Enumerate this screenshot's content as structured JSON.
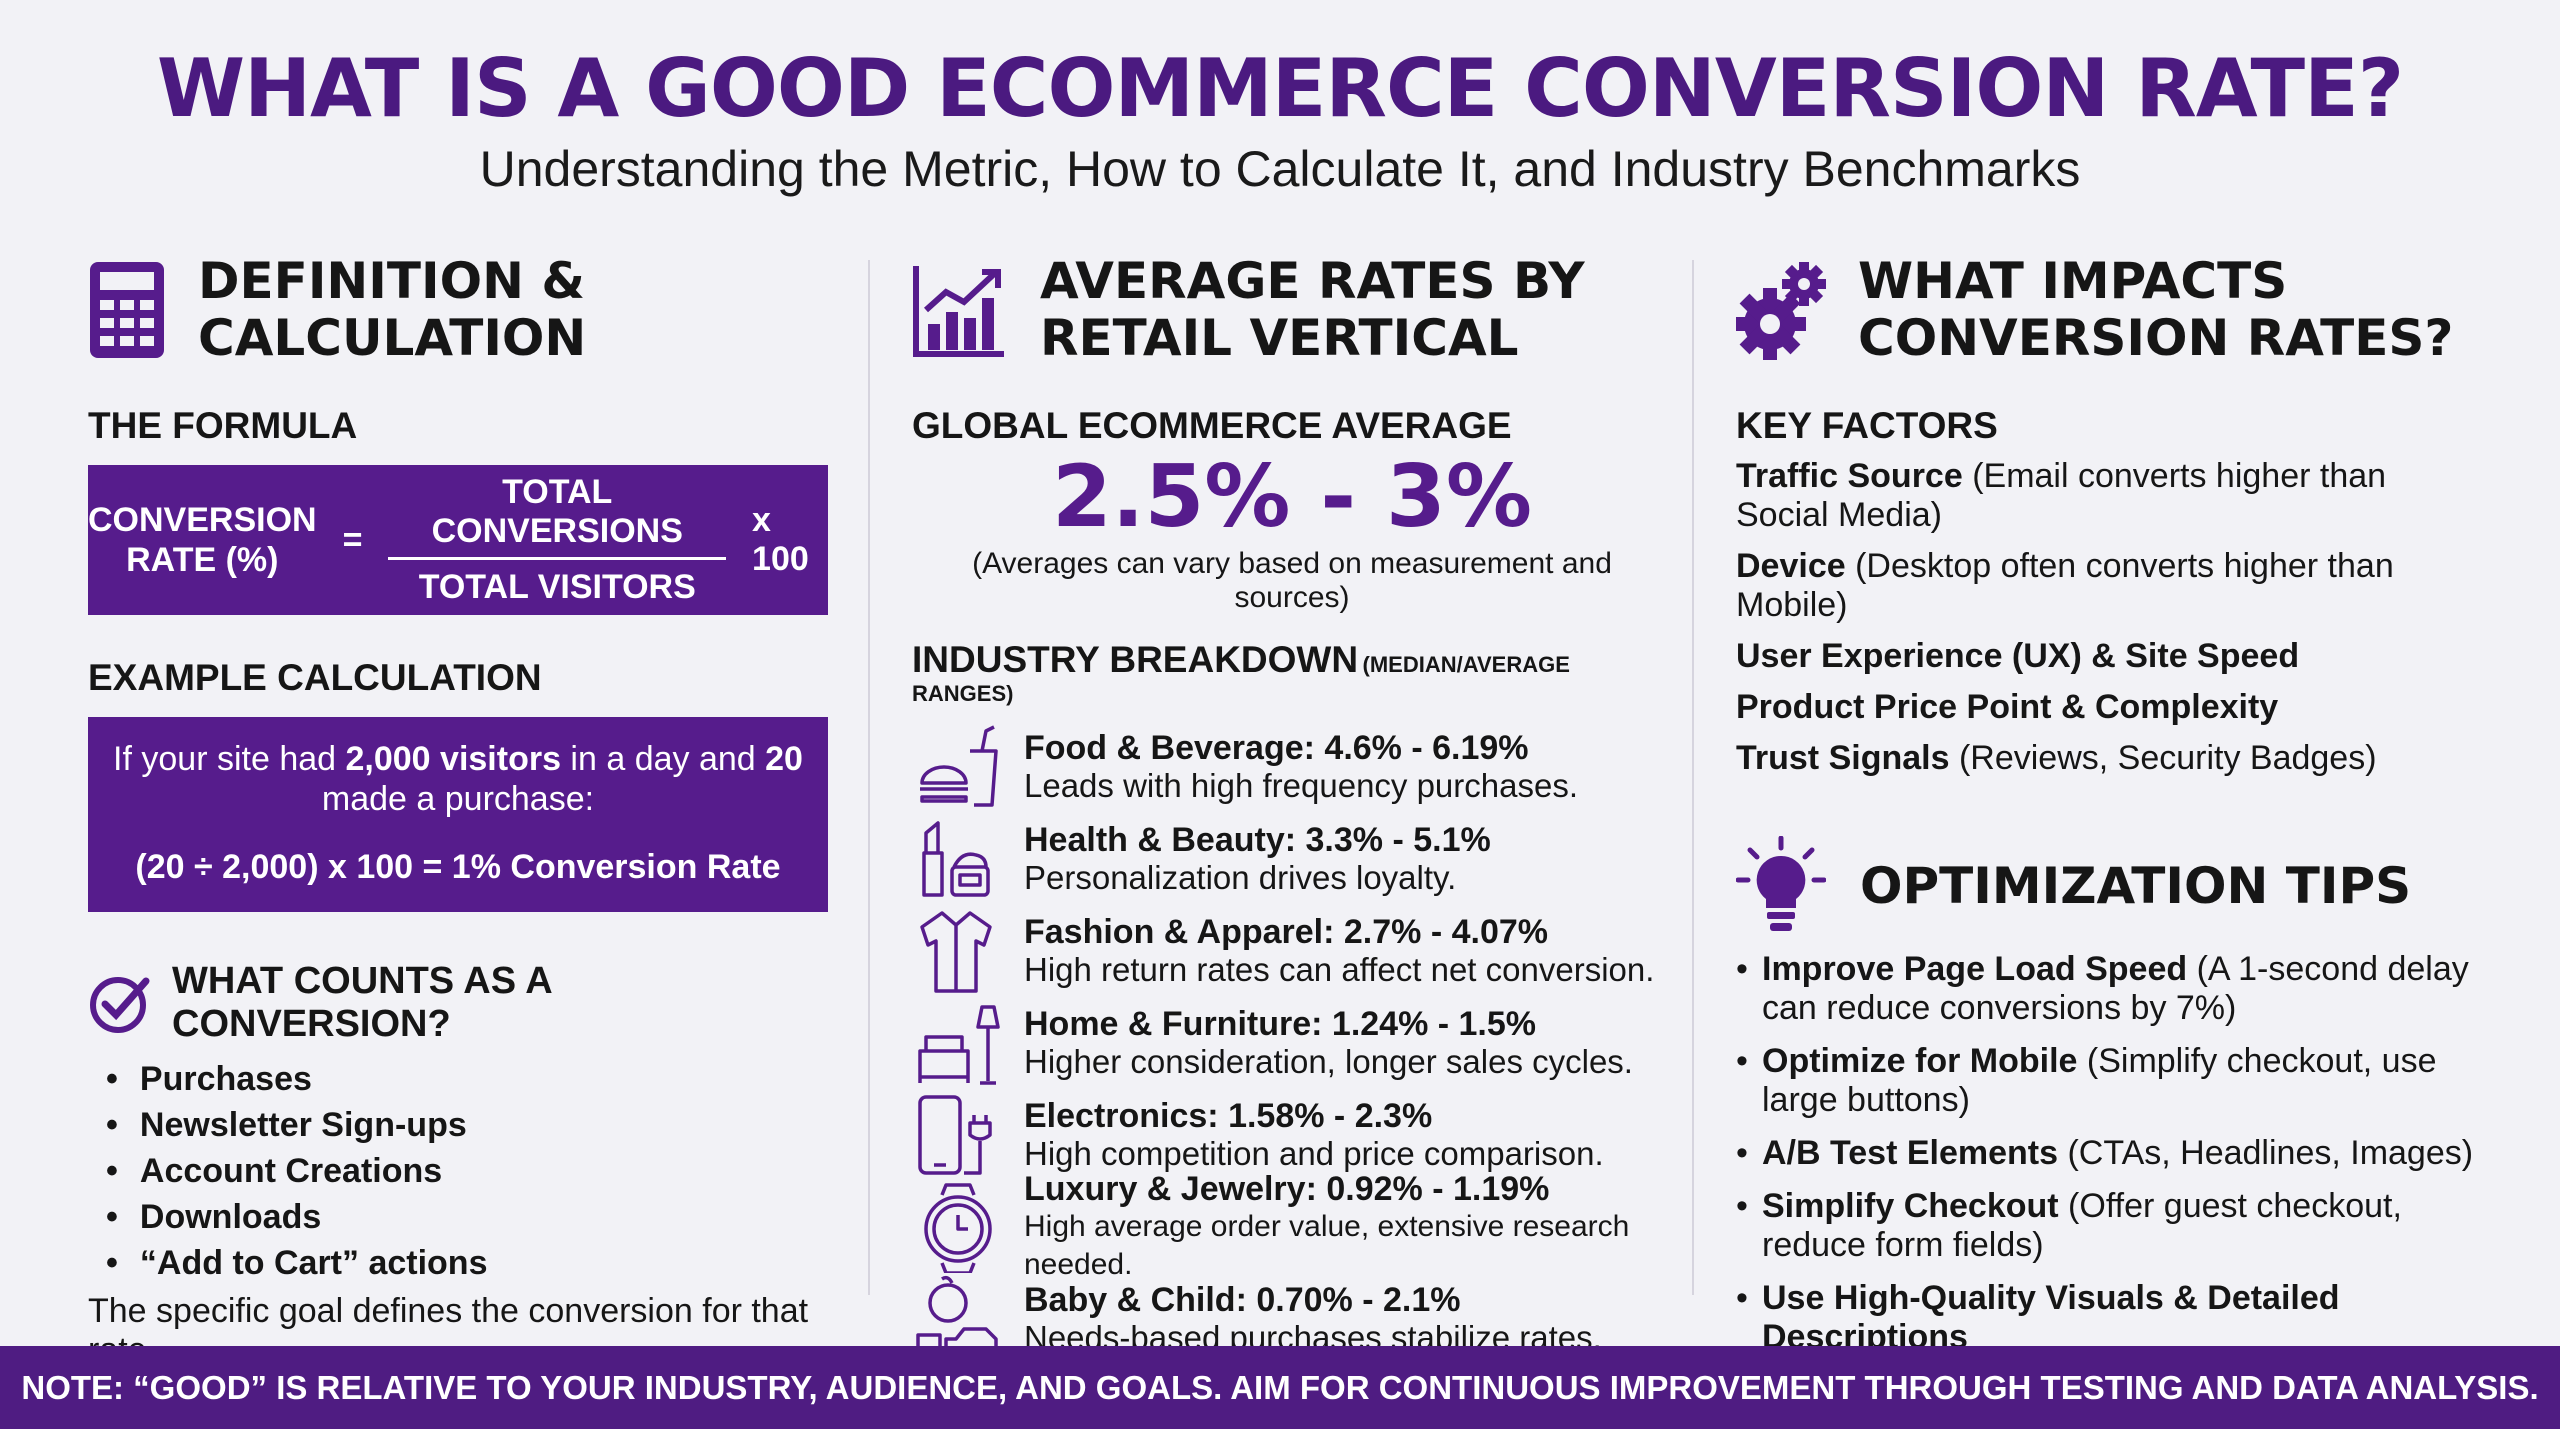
{
  "title": "WHAT IS A GOOD ECOMMERCE CONVERSION RATE?",
  "subtitle": "Understanding the Metric, How to Calculate It, and Industry Benchmarks",
  "colors": {
    "accent": "#561c8c",
    "title": "#4b1a80",
    "background": "#f2f2f6",
    "footer": "#4f1c82"
  },
  "definition": {
    "icon": "calculator-icon",
    "heading_line1": "DEFINITION &",
    "heading_line2": "CALCULATION",
    "formula_heading": "THE FORMULA",
    "formula": {
      "lhs_line1": "CONVERSION",
      "lhs_line2": "RATE (%)",
      "equals": "=",
      "numerator": "TOTAL CONVERSIONS",
      "denominator": "TOTAL VISITORS",
      "multiplier": "x 100"
    },
    "example_heading": "EXAMPLE CALCULATION",
    "example": {
      "t1": "If your site had ",
      "b1": "2,000 visitors",
      "t2": " in a day and ",
      "b2": "20",
      "t3": " made a purchase:",
      "result": "(20 ÷ 2,000) x 100 = 1% Conversion Rate"
    },
    "counts_icon": "check-circle-icon",
    "counts_heading": "WHAT COUNTS AS A CONVERSION?",
    "counts": [
      "Purchases",
      "Newsletter Sign-ups",
      "Account Creations",
      "Downloads",
      "“Add to Cart” actions"
    ],
    "counts_note": "The specific goal defines the conversion for that rate."
  },
  "averages": {
    "icon": "bar-chart-growth-icon",
    "heading_line1": "AVERAGE RATES BY",
    "heading_line2": "RETAIL VERTICAL",
    "global_heading": "GLOBAL ECOMMERCE AVERAGE",
    "global_value": "2.5% - 3%",
    "global_note": "(Averages can vary based on measurement and sources)",
    "breakdown_heading": "INDUSTRY BREAKDOWN",
    "breakdown_note": "(MEDIAN/AVERAGE RANGES)",
    "industries": [
      {
        "icon": "burger-drink-icon",
        "name": "Food & Beverage:",
        "range": "4.6% - 6.19%",
        "desc": "Leads with high frequency purchases."
      },
      {
        "icon": "lipstick-cream-icon",
        "name": "Health & Beauty:",
        "range": "3.3% - 5.1%",
        "desc": "Personalization drives loyalty."
      },
      {
        "icon": "shirt-icon",
        "name": "Fashion & Apparel:",
        "range": "2.7% - 4.07%",
        "desc": "High return rates can affect net conversion."
      },
      {
        "icon": "sofa-lamp-icon",
        "name": "Home & Furniture:",
        "range": "1.24% - 1.5%",
        "desc": "Higher consideration, longer sales cycles."
      },
      {
        "icon": "phone-plug-icon",
        "name": "Electronics:",
        "range": "1.58% - 2.3%",
        "desc": "High competition and price comparison."
      },
      {
        "icon": "watch-icon",
        "name": "Luxury & Jewelry:",
        "range": "0.92% - 1.19%",
        "desc": "High average order value, extensive research needed."
      },
      {
        "icon": "baby-toys-icon",
        "name": "Baby & Child:",
        "range": "0.70% - 2.1%",
        "desc": "Needs-based purchases stabilize rates."
      }
    ]
  },
  "impacts": {
    "icon": "gears-icon",
    "heading_line1": "WHAT IMPACTS",
    "heading_line2": "CONVERSION RATES?",
    "factors_heading": "KEY FACTORS",
    "factors": [
      {
        "bold": "Traffic Source",
        "rest": " (Email converts higher than Social Media)"
      },
      {
        "bold": "Device",
        "rest": " (Desktop often converts higher than Mobile)"
      },
      {
        "bold": "User Experience (UX) & Site Speed",
        "rest": ""
      },
      {
        "bold": "Product Price Point & Complexity",
        "rest": ""
      },
      {
        "bold": "Trust Signals",
        "rest": " (Reviews, Security Badges)"
      }
    ],
    "tips_icon": "lightbulb-icon",
    "tips_heading": "OPTIMIZATION TIPS",
    "tips": [
      {
        "bold": "Improve Page Load Speed",
        "rest": " (A 1-second delay can reduce conversions by 7%)"
      },
      {
        "bold": "Optimize for Mobile",
        "rest": " (Simplify checkout, use large buttons)"
      },
      {
        "bold": "A/B Test Elements",
        "rest": " (CTAs, Headlines, Images)"
      },
      {
        "bold": "Simplify Checkout",
        "rest": " (Offer guest checkout, reduce form fields)"
      },
      {
        "bold": "Use High-Quality Visuals & Detailed Descriptions",
        "rest": ""
      }
    ]
  },
  "footer": "NOTE: “GOOD” IS RELATIVE TO YOUR INDUSTRY, AUDIENCE, AND GOALS. AIM FOR CONTINUOUS IMPROVEMENT THROUGH TESTING AND DATA ANALYSIS."
}
